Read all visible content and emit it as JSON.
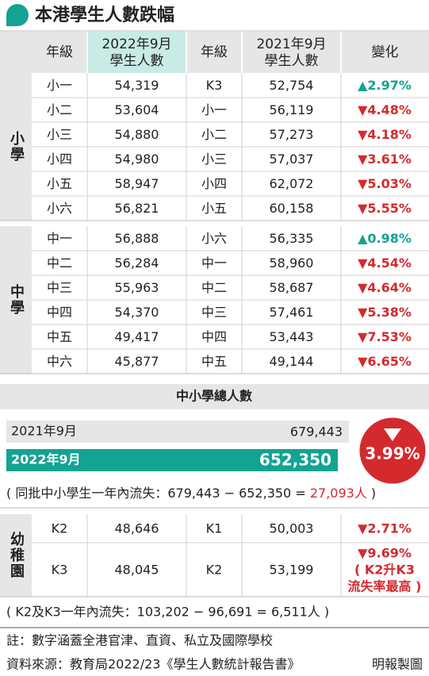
{
  "title": "本港學生人數跌幅",
  "header": [
    [
      "年級"
    ],
    [
      "2022年9月",
      "學生人數"
    ],
    [
      "年級"
    ],
    [
      "2021年9月",
      "學生人數"
    ],
    [
      "變化"
    ]
  ],
  "sections": [
    {
      "label": "小學",
      "rows": [
        [
          "小一",
          "54,319",
          "K3",
          "52,754",
          "▲2.97%"
        ],
        [
          "小二",
          "53,604",
          "小一",
          "56,119",
          "▼4.48%"
        ],
        [
          "小三",
          "54,880",
          "小二",
          "57,273",
          "▼4.18%"
        ],
        [
          "小四",
          "54,980",
          "小三",
          "57,037",
          "▼3.61%"
        ],
        [
          "小五",
          "58,947",
          "小四",
          "62,072",
          "▼5.03%"
        ],
        [
          "小六",
          "56,821",
          "小五",
          "60,158",
          "▼5.55%"
        ]
      ]
    },
    {
      "label": "中學",
      "rows": [
        [
          "中一",
          "56,888",
          "小六",
          "56,335",
          "▲0.98%"
        ],
        [
          "中二",
          "56,284",
          "中一",
          "58,960",
          "▼4.54%"
        ],
        [
          "中三",
          "55,963",
          "中二",
          "58,687",
          "▼4.64%"
        ],
        [
          "中四",
          "54,370",
          "中三",
          "57,461",
          "▼5.38%"
        ],
        [
          "中五",
          "49,417",
          "中四",
          "53,443",
          "▼7.53%"
        ],
        [
          "中六",
          "45,877",
          "中五",
          "49,144",
          "▼6.65%"
        ]
      ]
    }
  ],
  "total": {
    "title": "中小學總人數",
    "rows": [
      {
        "label": "2021年9月",
        "value": "679,443"
      },
      {
        "label": "2022年9月",
        "value": "652,350"
      }
    ],
    "change": "3.99%",
    "note": [
      "( 同批中小學生一年內流失：679,443 − 652,350 = ",
      "27,093人",
      " )"
    ]
  },
  "kindergarten": {
    "label": "幼稚園",
    "rows": [
      [
        "K2",
        "48,646",
        "K1",
        "50,003",
        [
          "▼2.71%"
        ]
      ],
      [
        "K3",
        "48,045",
        "K2",
        "53,199",
        [
          "▼9.69%",
          "( K2升K3",
          "流失率最高 )"
        ]
      ]
    ],
    "note": "( K2及K3一年內流失：103,202 − 96,691 = 6,511人 )"
  },
  "footnote": "註：數字涵蓋全港官津、直資、私立及國際學校",
  "source": "資料來源：教育局2022/23《學生人數統計報告書》",
  "credit": "明報製圖"
}
